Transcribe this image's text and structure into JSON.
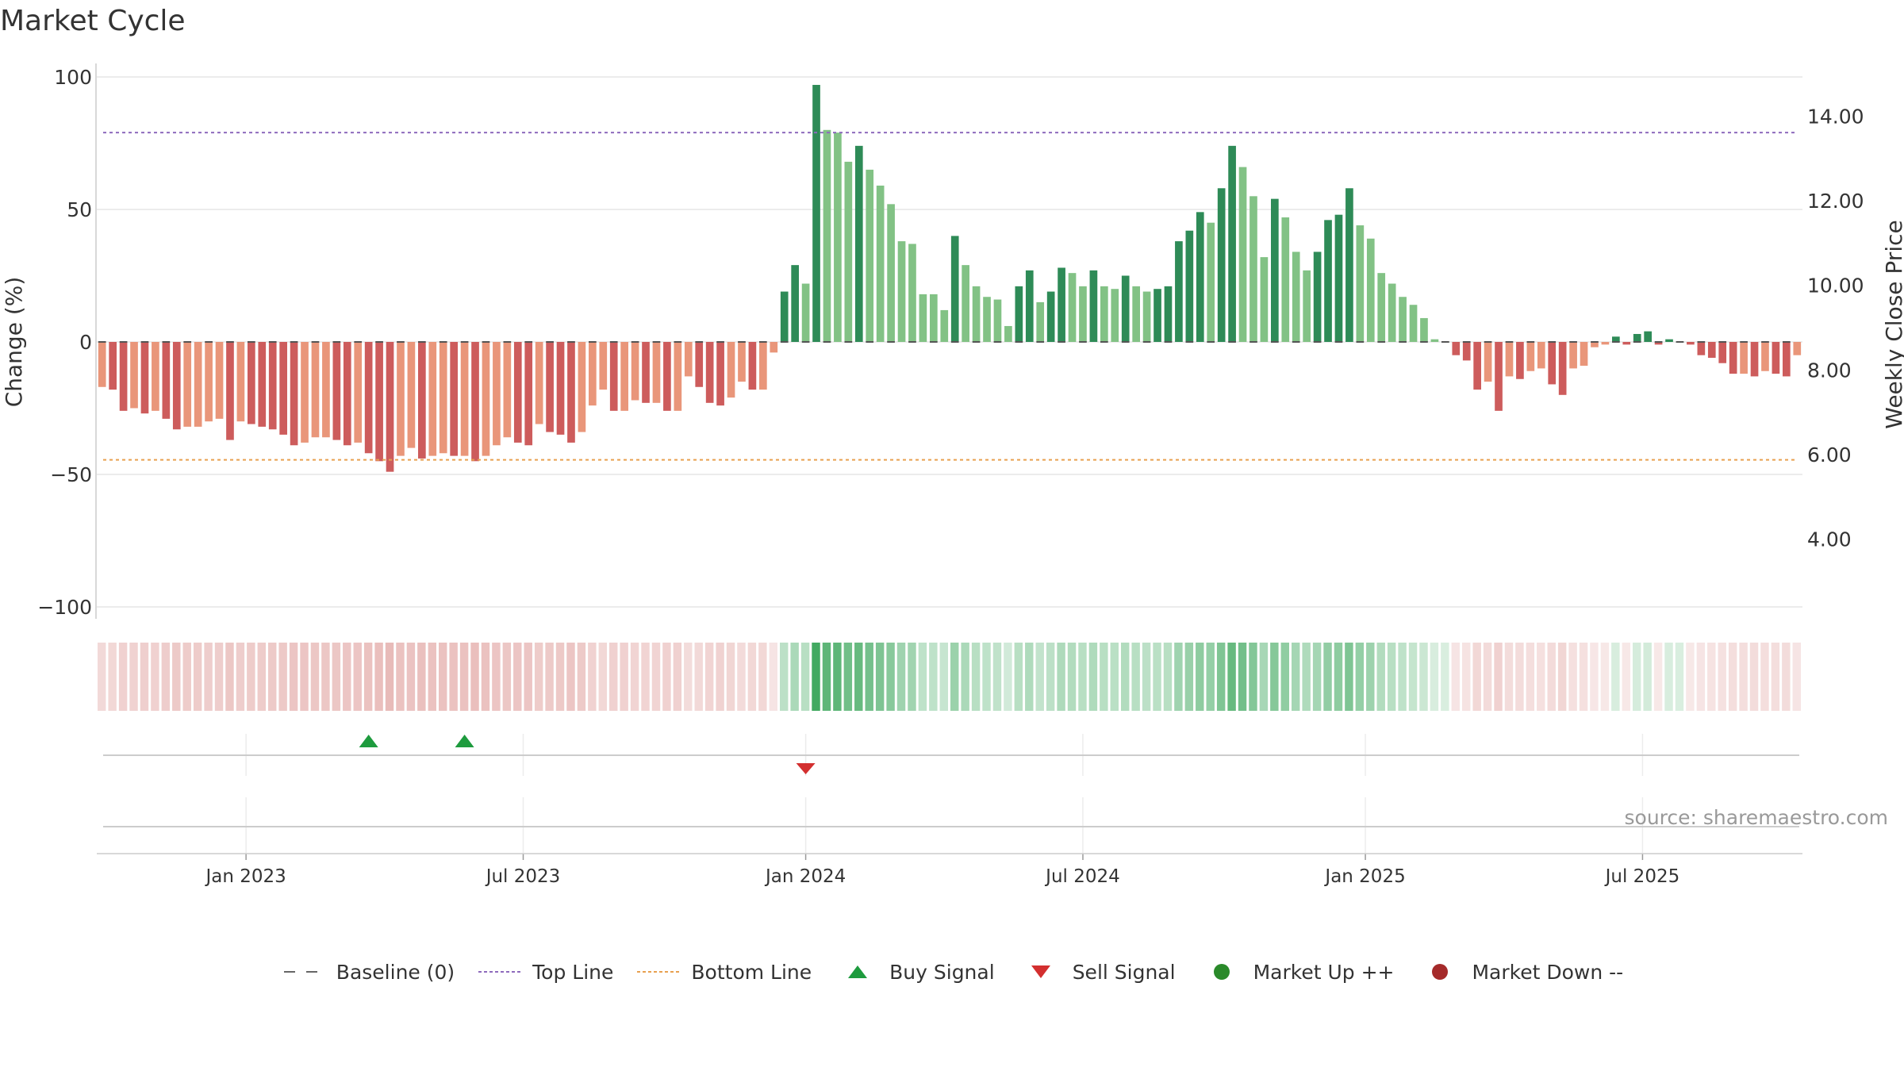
{
  "title": "Market Cycle",
  "source": "source: sharemaestro.com",
  "legend": [
    {
      "label": "Baseline (0)",
      "icon": "dash-line",
      "color": "#666666"
    },
    {
      "label": "Top Line",
      "icon": "dotted-line",
      "color": "#8e6bbd"
    },
    {
      "label": "Bottom Line",
      "icon": "dotted-line",
      "color": "#e8a050"
    },
    {
      "label": "Buy Signal",
      "icon": "up-triangle",
      "color": "#1e9b3e"
    },
    {
      "label": "Sell Signal",
      "icon": "down-triangle",
      "color": "#d32f2f"
    },
    {
      "label": "Market Up ++",
      "icon": "circle",
      "color": "#2a8a2a"
    },
    {
      "label": "Market Down --",
      "icon": "circle",
      "color": "#a52a2a"
    }
  ],
  "chart_data": {
    "type": "bar",
    "ylabel": "Change (%)",
    "y2label": "Weekly Close Price",
    "ylim": [
      -100,
      100
    ],
    "yticks": [
      "100",
      "50",
      "0",
      "−50",
      "−100"
    ],
    "y2ticks": [
      "14.00",
      "12.00",
      "10.00",
      "8.00",
      "6.00",
      "4.00"
    ],
    "y2lim": [
      2.4,
      15.3
    ],
    "top_line": 79,
    "bottom_line": -44.5,
    "baseline": 0,
    "xticks": [
      {
        "label": "Jan 2023",
        "week": 14
      },
      {
        "label": "Jul 2023",
        "week": 40
      },
      {
        "label": "Jan 2024",
        "week": 66.5
      },
      {
        "label": "Jul 2024",
        "week": 92.5
      },
      {
        "label": "Jan 2025",
        "week": 119
      },
      {
        "label": "Jul 2025",
        "week": 145
      }
    ],
    "values": [
      -17,
      -18,
      -26,
      -25,
      -27,
      -26,
      -29,
      -33,
      -32,
      -32,
      -30,
      -29,
      -37,
      -30,
      -31,
      -32,
      -33,
      -35,
      -39,
      -38,
      -36,
      -36,
      -37,
      -39,
      -38,
      -42,
      -45,
      -49,
      -43,
      -40,
      -44,
      -43,
      -42,
      -43,
      -43,
      -45,
      -43,
      -39,
      -36,
      -38,
      -39,
      -31,
      -34,
      -35,
      -38,
      -34,
      -24,
      -18,
      -26,
      -26,
      -22,
      -23,
      -23,
      -26,
      -26,
      -13,
      -17,
      -23,
      -24,
      -21,
      -15,
      -18,
      -18,
      -4,
      19,
      29,
      22,
      97,
      80,
      79,
      68,
      74,
      65,
      59,
      52,
      38,
      37,
      18,
      18,
      12,
      40,
      29,
      21,
      17,
      16,
      6,
      21,
      27,
      15,
      19,
      28,
      26,
      21,
      27,
      21,
      20,
      25,
      21,
      19,
      20,
      21,
      38,
      42,
      49,
      45,
      58,
      74,
      66,
      55,
      32,
      54,
      47,
      34,
      27,
      34,
      46,
      48,
      58,
      44,
      39,
      26,
      22,
      17,
      14,
      9,
      1,
      0,
      -5,
      -7,
      -18,
      -15,
      -26,
      -13,
      -14,
      -11,
      -10,
      -16,
      -20,
      -10,
      -9,
      -2,
      -1,
      2,
      -1,
      3,
      4,
      -1,
      1,
      0,
      -1,
      -5,
      -6,
      -8,
      -12,
      -12,
      -13,
      -11,
      -12,
      -13,
      -5
    ],
    "buy_signals": [
      25,
      34
    ],
    "sell_signals": [
      66
    ],
    "colors": {
      "up_strong": "#2e8b57",
      "up_light": "#82c285",
      "down_strong": "#cd5c5c",
      "down_light": "#e9967a",
      "grid": "#e6e6e6"
    }
  }
}
